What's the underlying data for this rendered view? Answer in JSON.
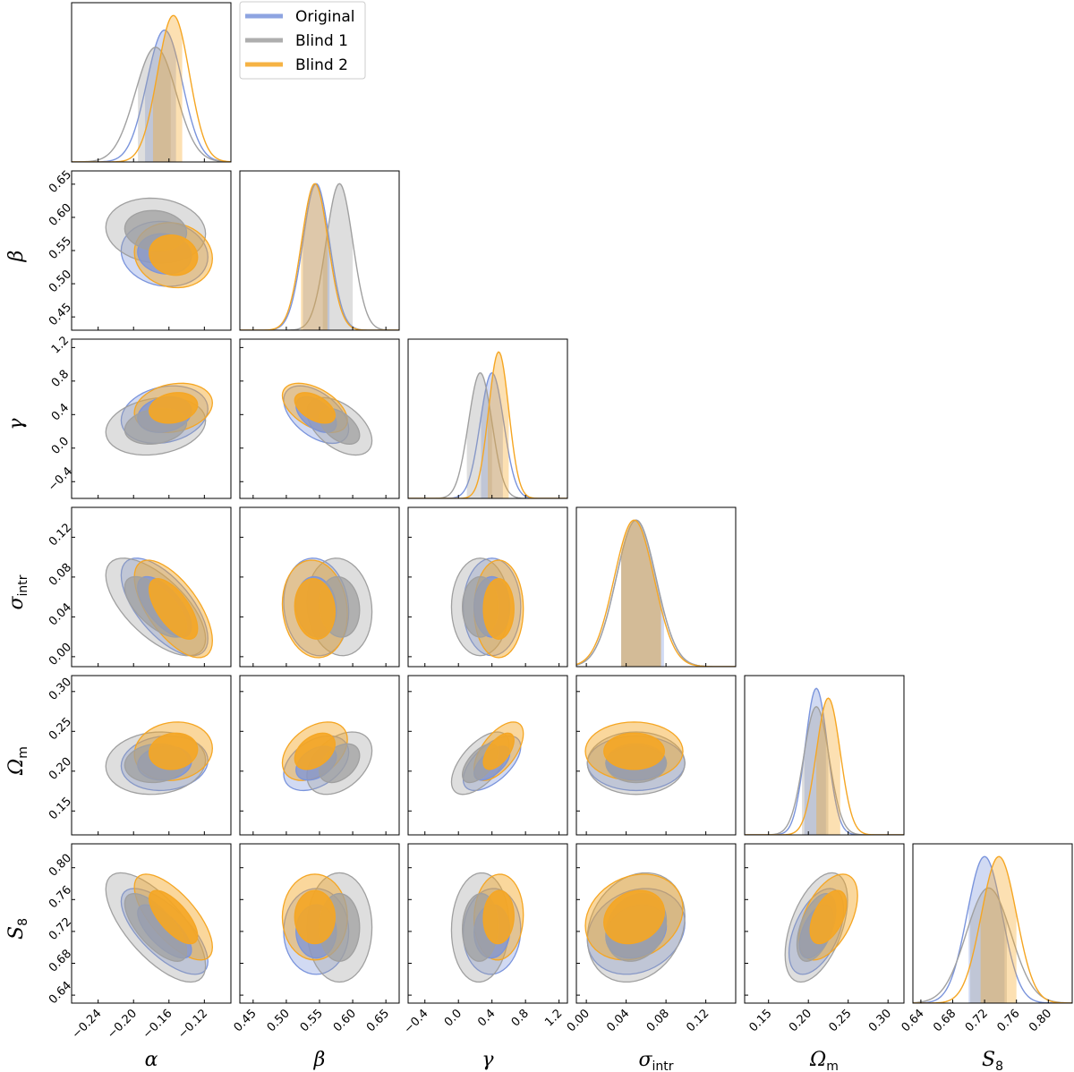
{
  "chart_data": {
    "type": "corner",
    "title": "",
    "parameters": [
      {
        "key": "alpha",
        "label": "α",
        "sub": "",
        "range": [
          -0.27,
          -0.09
        ],
        "ticks": [
          "−0.24",
          "−0.20",
          "−0.16",
          "−0.12"
        ],
        "tick_values": [
          -0.24,
          -0.2,
          -0.16,
          -0.12
        ]
      },
      {
        "key": "beta",
        "label": "β",
        "sub": "",
        "range": [
          0.43,
          0.67
        ],
        "ticks": [
          "0.45",
          "0.50",
          "0.55",
          "0.60",
          "0.65"
        ],
        "tick_values": [
          0.45,
          0.5,
          0.55,
          0.6,
          0.65
        ]
      },
      {
        "key": "gamma",
        "label": "γ",
        "sub": "",
        "range": [
          -0.6,
          1.3
        ],
        "ticks": [
          "−0.4",
          "0.0",
          "0.4",
          "0.8",
          "1.2"
        ],
        "tick_values": [
          -0.4,
          0.0,
          0.4,
          0.8,
          1.2
        ]
      },
      {
        "key": "sigma_intr",
        "label": "σ",
        "sub": "intr",
        "range": [
          -0.01,
          0.15
        ],
        "ticks": [
          "0.00",
          "0.04",
          "0.08",
          "0.12"
        ],
        "tick_values": [
          0.0,
          0.04,
          0.08,
          0.12
        ]
      },
      {
        "key": "omega_m",
        "label": "Ω",
        "sub": "m",
        "range": [
          0.12,
          0.32
        ],
        "ticks": [
          "0.15",
          "0.20",
          "0.25",
          "0.30"
        ],
        "tick_values": [
          0.15,
          0.2,
          0.25,
          0.3
        ]
      },
      {
        "key": "s8",
        "label": "S",
        "sub": "8",
        "range": [
          0.63,
          0.83
        ],
        "ticks": [
          "0.64",
          "0.68",
          "0.72",
          "0.76",
          "0.80"
        ],
        "tick_values": [
          0.64,
          0.68,
          0.72,
          0.76,
          0.8
        ]
      }
    ],
    "series": [
      {
        "name": "Original",
        "color": "#7a94dc",
        "means": [
          -0.165,
          0.545,
          0.4,
          0.05,
          0.21,
          0.72
        ],
        "sds": [
          0.02,
          0.02,
          0.14,
          0.02,
          0.014,
          0.022
        ],
        "ci": [
          [
            -0.187,
            -0.152
          ],
          [
            0.525,
            0.565
          ],
          [
            0.27,
            0.53
          ],
          [
            0.035,
            0.078
          ],
          [
            0.195,
            0.222
          ],
          [
            0.7,
            0.745
          ]
        ]
      },
      {
        "name": "Blind 1",
        "color": "#a0a0a0",
        "means": [
          -0.175,
          0.58,
          0.26,
          0.05,
          0.21,
          0.725
        ],
        "sds": [
          0.023,
          0.02,
          0.14,
          0.02,
          0.016,
          0.028
        ],
        "ci": [
          [
            -0.195,
            -0.158
          ],
          [
            0.555,
            0.6
          ],
          [
            0.1,
            0.4
          ],
          [
            0.035,
            0.075
          ],
          [
            0.192,
            0.225
          ],
          [
            0.702,
            0.748
          ]
        ]
      },
      {
        "name": "Blind 2",
        "color": "#f5a623",
        "means": [
          -0.155,
          0.543,
          0.48,
          0.048,
          0.225,
          0.738
        ],
        "sds": [
          0.018,
          0.02,
          0.12,
          0.02,
          0.015,
          0.022
        ],
        "ci": [
          [
            -0.178,
            -0.145
          ],
          [
            0.522,
            0.562
          ],
          [
            0.35,
            0.6
          ],
          [
            0.035,
            0.075
          ],
          [
            0.21,
            0.24
          ],
          [
            0.715,
            0.76
          ]
        ]
      }
    ],
    "legend": {
      "entries": [
        "Original",
        "Blind 1",
        "Blind 2"
      ],
      "placement": "top-left"
    }
  }
}
